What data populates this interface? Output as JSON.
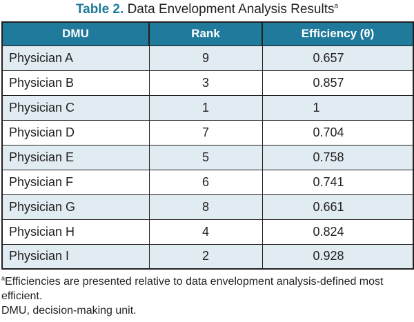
{
  "caption": {
    "label": "Table 2.",
    "title": "Data Envelopment Analysis Results",
    "marker": "a"
  },
  "colors": {
    "header_bg": "#1f7a9b",
    "caption_label": "#1f7a9b",
    "shaded_row": "#e0ecf1",
    "text": "#231f20"
  },
  "table": {
    "headers": {
      "dmu": "DMU",
      "rank": "Rank",
      "efficiency": "Efficiency (θ)"
    },
    "rows": [
      {
        "dmu": "Physician A",
        "rank": "9",
        "efficiency": "0.657"
      },
      {
        "dmu": "Physician B",
        "rank": "3",
        "efficiency": "0.857"
      },
      {
        "dmu": "Physician C",
        "rank": "1",
        "efficiency": "1"
      },
      {
        "dmu": "Physician D",
        "rank": "7",
        "efficiency": "0.704"
      },
      {
        "dmu": "Physician E",
        "rank": "5",
        "efficiency": "0.758"
      },
      {
        "dmu": "Physician F",
        "rank": "6",
        "efficiency": "0.741"
      },
      {
        "dmu": "Physician G",
        "rank": "8",
        "efficiency": "0.661"
      },
      {
        "dmu": "Physician H",
        "rank": "4",
        "efficiency": "0.824"
      },
      {
        "dmu": "Physician I",
        "rank": "2",
        "efficiency": "0.928"
      }
    ]
  },
  "footnotes": {
    "a_marker": "a",
    "a_text": "Efficiencies are presented relative to data envelopment analysis-defined most efficient.",
    "abbrev": "DMU, decision-making unit."
  }
}
